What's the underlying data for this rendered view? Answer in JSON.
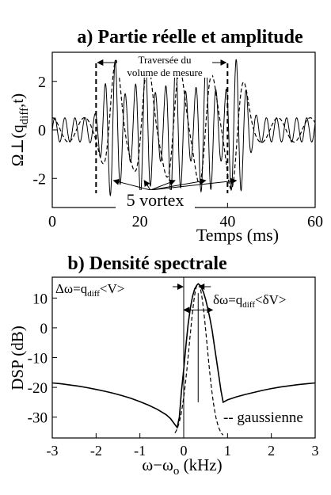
{
  "chart_data": [
    {
      "type": "line",
      "title": "a) Partie réelle et amplitude",
      "xlabel": "Temps (ms)",
      "ylabel": "Ω⊥(q",
      "ylabel_sub": "diff",
      "ylabel_suffix": ",t)",
      "xlim": [
        0,
        60
      ],
      "ylim": [
        -3.2,
        3.2
      ],
      "xticks": [
        0,
        20,
        40,
        60
      ],
      "yticks": [
        -2,
        0,
        2
      ],
      "grid": false,
      "annotations": {
        "crossing_line1": "Traversée du",
        "crossing_line2": "volume de mesure",
        "crossing_start_ms": 10,
        "crossing_end_ms": 40,
        "vortex_label": "5 vortex"
      },
      "series": [
        {
          "style": "solid",
          "envelope_peaks_ms": [
            14,
            21,
            28,
            35,
            42
          ],
          "envelope_peak_amplitude": 2.9,
          "baseline_amplitude": 0.5,
          "oscillation_period_ms": 2.3
        },
        {
          "style": "dashed",
          "envelope_peaks_ms": [
            14,
            21,
            28,
            35,
            42
          ],
          "envelope_peak_amplitude": 3.0,
          "baseline_amplitude": 0.5
        }
      ]
    },
    {
      "type": "line",
      "title": "b) Densité spectrale",
      "xlabel": "ω−ω",
      "xlabel_sub": "o",
      "xlabel_suffix": " (kHz)",
      "ylabel": "DSP (dB)",
      "xlim": [
        -3,
        3
      ],
      "ylim": [
        -37,
        17
      ],
      "xticks": [
        -3,
        -2,
        -1,
        0,
        1,
        2,
        3
      ],
      "yticks": [
        -30,
        -20,
        -10,
        0,
        10
      ],
      "grid": false,
      "annotations": {
        "delta_omega_label": "Δω=q",
        "delta_omega_sub": "diff",
        "delta_omega_rest": "<V>",
        "delta_omega_arrow_from": 0.0,
        "delta_omega_arrow_to": 0.33,
        "delta_omega_sigma_label": "δω=q",
        "delta_omega_sigma_sub": "diff",
        "delta_omega_sigma_rest": "<δV>",
        "legend_text": "-- gaussienne",
        "reference_line_x": 0.0,
        "peak_line_x": 0.33
      },
      "series": [
        {
          "style": "solid",
          "x": [
            -3.0,
            -2.8,
            -2.6,
            -2.4,
            -2.2,
            -2.0,
            -1.8,
            -1.6,
            -1.4,
            -1.2,
            -1.0,
            -0.8,
            -0.6,
            -0.4,
            -0.3,
            -0.2,
            -0.15,
            -0.1,
            -0.05,
            0.0,
            0.05,
            0.1,
            0.15,
            0.2,
            0.25,
            0.3,
            0.33,
            0.38,
            0.45,
            0.5,
            0.55,
            0.6,
            0.65,
            0.7,
            0.75,
            0.8,
            0.85,
            0.9,
            1.0,
            1.2,
            1.4,
            1.6,
            1.8,
            2.0,
            2.2,
            2.4,
            2.6,
            2.8,
            3.0
          ],
          "y": [
            -18.5,
            -18.8,
            -19.2,
            -19.6,
            -20.1,
            -20.7,
            -21.3,
            -22.0,
            -22.8,
            -23.7,
            -24.8,
            -26.0,
            -27.4,
            -29.2,
            -30.5,
            -32.5,
            -33.5,
            -30.0,
            -21.0,
            -14.0,
            -6.0,
            1.0,
            6.5,
            10.5,
            13.0,
            14.3,
            14.8,
            14.2,
            12.0,
            9.5,
            6.5,
            3.0,
            -1.0,
            -6.0,
            -11.0,
            -16.0,
            -21.0,
            -25.0,
            -24.2,
            -23.2,
            -22.4,
            -21.7,
            -21.0,
            -20.4,
            -19.9,
            -19.5,
            -19.1,
            -18.8,
            -18.5
          ]
        },
        {
          "style": "dashed",
          "name": "gaussienne",
          "center": 0.33,
          "peak_db": 14.8,
          "width_khz": 0.3,
          "x_range": [
            -0.2,
            0.9
          ]
        }
      ]
    }
  ]
}
